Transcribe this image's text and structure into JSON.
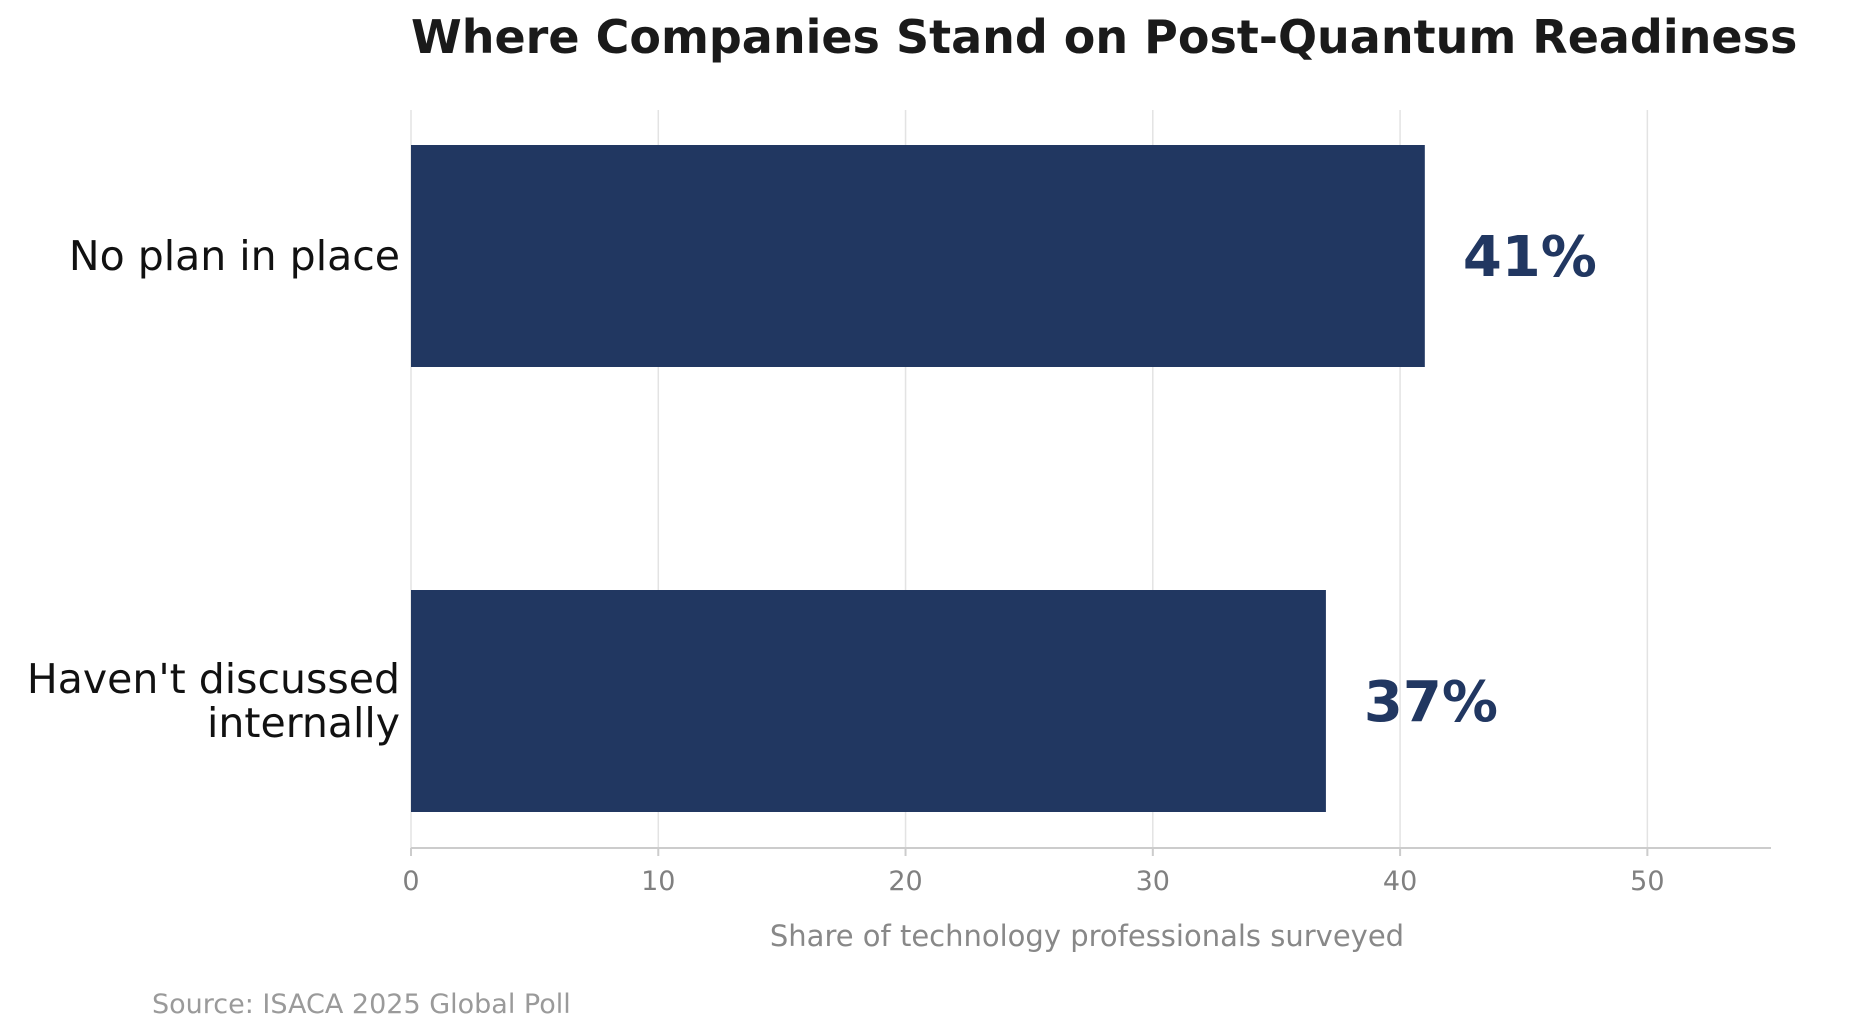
{
  "chart_data": {
    "type": "bar",
    "orientation": "horizontal",
    "title": "Where Companies Stand on Post-Quantum Readiness",
    "categories": [
      "No plan in place",
      "Haven't discussed\ninternally"
    ],
    "values": [
      41,
      37
    ],
    "value_labels": [
      "41%",
      "37%"
    ],
    "xlabel": "Share of technology professionals surveyed",
    "ylabel": "",
    "xlim": [
      0,
      55
    ],
    "xticks": [
      0,
      10,
      20,
      30,
      40,
      50
    ],
    "xtick_labels": [
      "0",
      "10",
      "20",
      "30",
      "40",
      "50"
    ],
    "grid": "vertical",
    "legend": "none",
    "source": "Source: ISACA 2025 Global Poll"
  },
  "colors": {
    "bar": "#213761",
    "value_label": "#213761",
    "grid": "#e3e3e3",
    "axis": "#cccccc"
  }
}
